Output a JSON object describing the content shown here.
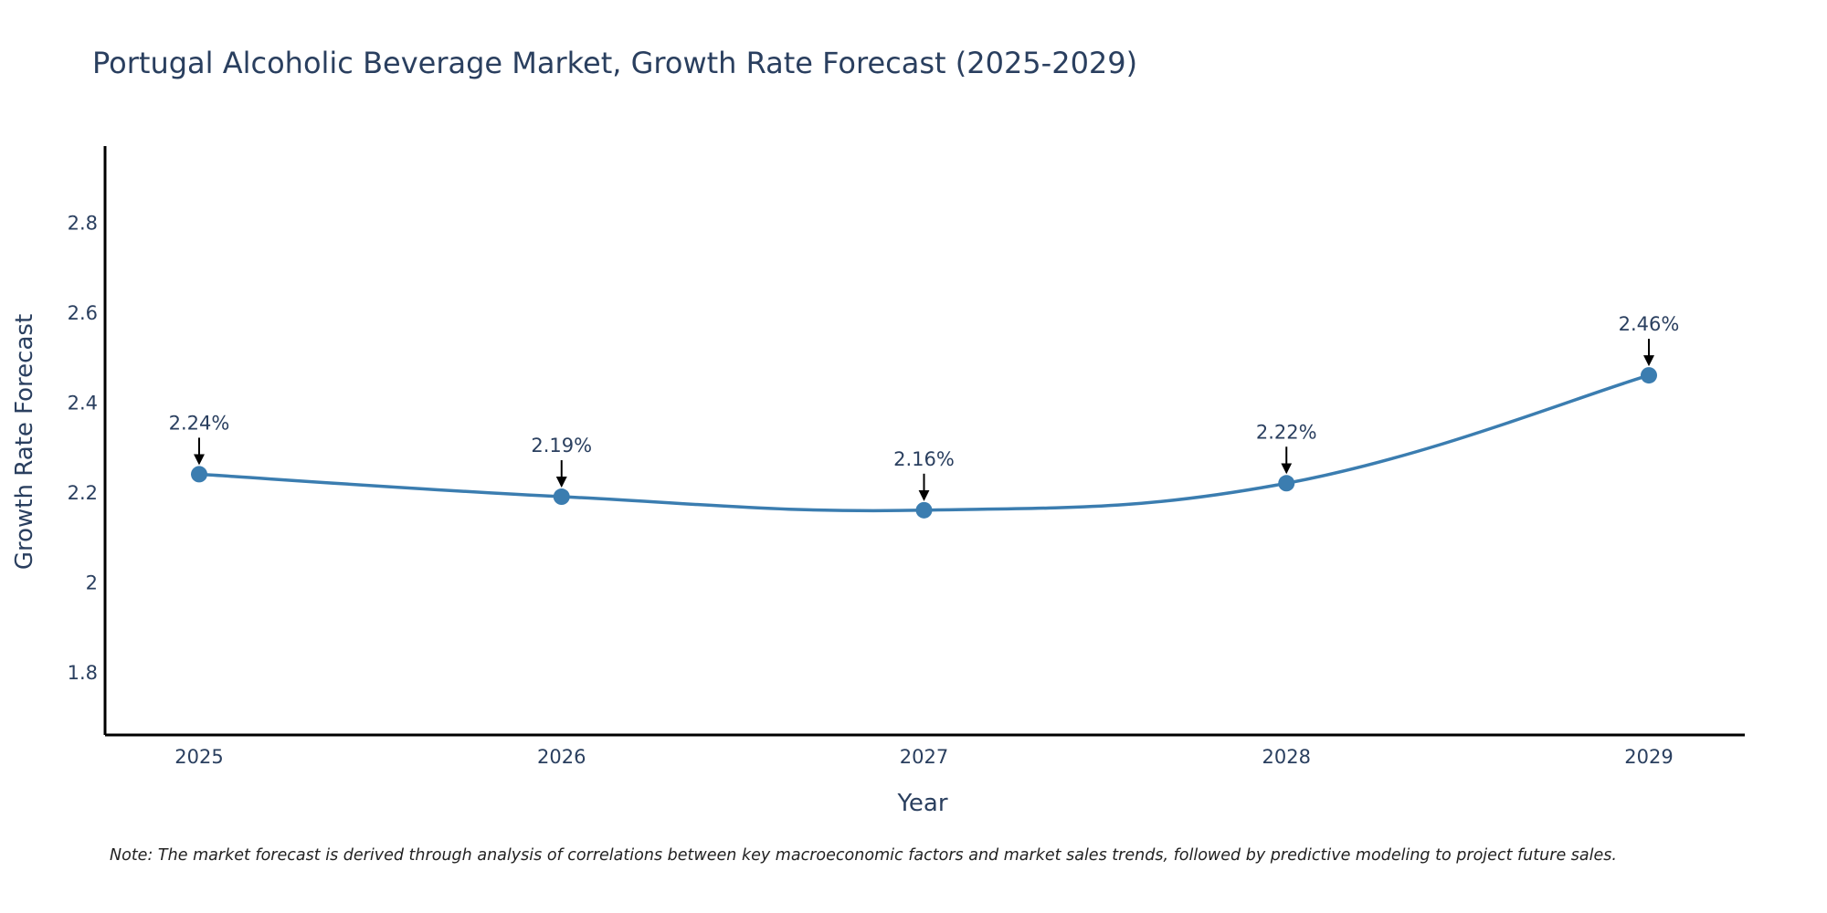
{
  "chart_data": {
    "type": "line",
    "title": "Portugal Alcoholic Beverage Market, Growth Rate Forecast (2025-2029)",
    "xlabel": "Year",
    "ylabel": "Growth Rate Forecast",
    "categories": [
      "2025",
      "2026",
      "2027",
      "2028",
      "2029"
    ],
    "values": [
      2.24,
      2.19,
      2.16,
      2.22,
      2.46
    ],
    "data_labels": [
      "2.24%",
      "2.19%",
      "2.16%",
      "2.22%",
      "2.46%"
    ],
    "ylim": [
      1.66,
      2.97
    ],
    "yticks": [
      1.8,
      2,
      2.2,
      2.4,
      2.6,
      2.8
    ],
    "ytick_labels": [
      "1.8",
      "2",
      "2.2",
      "2.4",
      "2.6",
      "2.8"
    ],
    "line_shape": "spline",
    "grid": false,
    "line_color": "#3b7db0",
    "marker_color": "#3b7db0",
    "arrow_color": "#000000",
    "note": "Note: The market forecast is derived through analysis of correlations between key macroeconomic factors and market sales trends, followed by predictive modeling to project future sales."
  }
}
